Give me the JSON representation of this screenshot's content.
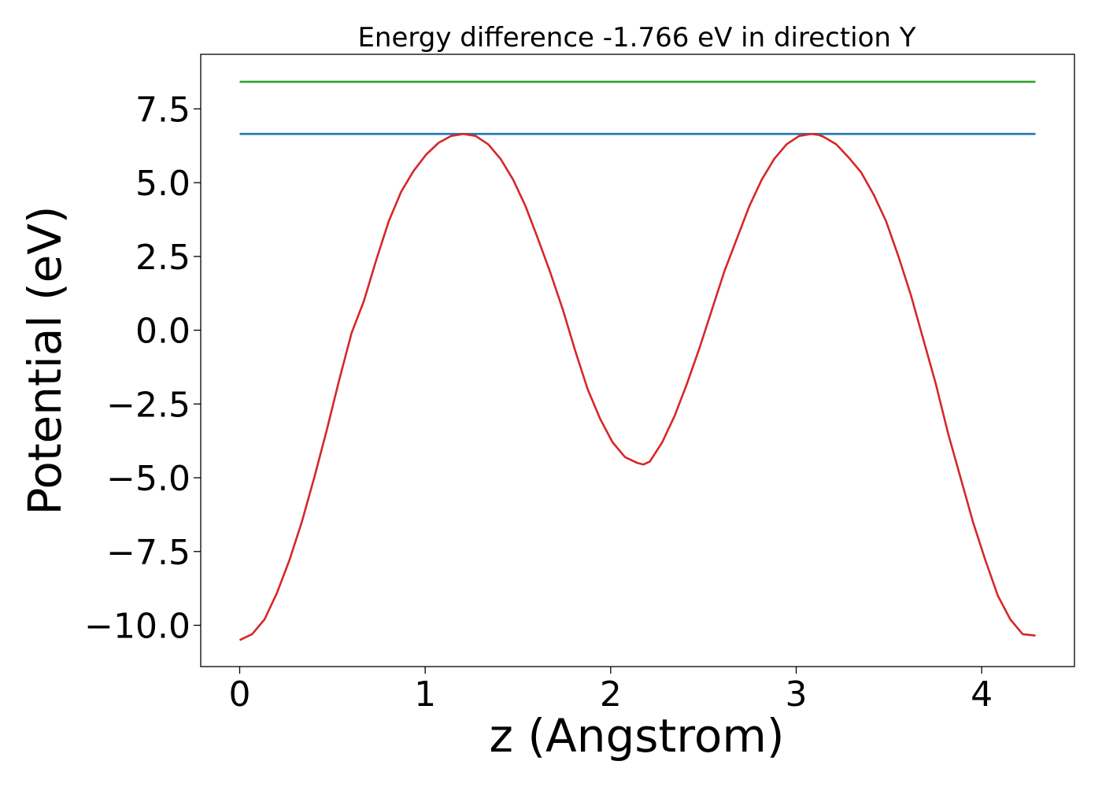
{
  "chart_data": {
    "type": "line",
    "title": "Energy difference -1.766 eV in direction Y",
    "xlabel": "z (Angstrom)",
    "ylabel": "Potential (eV)",
    "xlim": [
      -0.21,
      4.5
    ],
    "ylim": [
      -11.4,
      9.35
    ],
    "xticks": [
      0,
      1,
      2,
      3,
      4
    ],
    "xtick_labels": [
      "0",
      "1",
      "2",
      "3",
      "4"
    ],
    "yticks": [
      7.5,
      5.0,
      2.5,
      0.0,
      -2.5,
      -5.0,
      -7.5,
      -10.0
    ],
    "ytick_labels": [
      "7.5",
      "5.0",
      "2.5",
      "0.0",
      "−2.5",
      "−5.0",
      "−7.5",
      "−10.0"
    ],
    "grid": false,
    "series": [
      {
        "color": "#2ca02c",
        "x": [
          0,
          4.29
        ],
        "y": [
          8.42,
          8.42
        ]
      },
      {
        "color": "#1f77b4",
        "x": [
          0,
          4.29
        ],
        "y": [
          6.65,
          6.65
        ]
      },
      {
        "color": "#d62728",
        "x": [
          0.0,
          0.067,
          0.134,
          0.201,
          0.268,
          0.335,
          0.402,
          0.469,
          0.536,
          0.603,
          0.67,
          0.737,
          0.804,
          0.871,
          0.938,
          1.005,
          1.072,
          1.139,
          1.206,
          1.273,
          1.34,
          1.407,
          1.474,
          1.541,
          1.608,
          1.675,
          1.742,
          1.809,
          1.876,
          1.943,
          2.01,
          2.077,
          2.144,
          2.177,
          2.211,
          2.278,
          2.345,
          2.412,
          2.479,
          2.546,
          2.613,
          2.68,
          2.747,
          2.814,
          2.881,
          2.948,
          3.015,
          3.082,
          3.122,
          3.149,
          3.216,
          3.283,
          3.35,
          3.417,
          3.484,
          3.551,
          3.618,
          3.685,
          3.752,
          3.819,
          3.886,
          3.953,
          4.02,
          4.087,
          4.154,
          4.221,
          4.29
        ],
        "y": [
          -10.5,
          -10.3,
          -9.8,
          -8.9,
          -7.8,
          -6.5,
          -5.0,
          -3.4,
          -1.7,
          -0.1,
          1.0,
          2.4,
          3.7,
          4.7,
          5.4,
          5.95,
          6.35,
          6.58,
          6.65,
          6.58,
          6.3,
          5.8,
          5.1,
          4.2,
          3.1,
          1.95,
          0.7,
          -0.7,
          -2.0,
          -3.0,
          -3.8,
          -4.3,
          -4.5,
          -4.55,
          -4.45,
          -3.8,
          -2.9,
          -1.8,
          -0.6,
          0.7,
          2.0,
          3.1,
          4.2,
          5.1,
          5.8,
          6.3,
          6.58,
          6.65,
          6.62,
          6.55,
          6.3,
          5.85,
          5.35,
          4.6,
          3.7,
          2.5,
          1.2,
          -0.3,
          -1.8,
          -3.5,
          -5.0,
          -6.5,
          -7.8,
          -9.0,
          -9.8,
          -10.3,
          -10.35
        ]
      }
    ]
  }
}
